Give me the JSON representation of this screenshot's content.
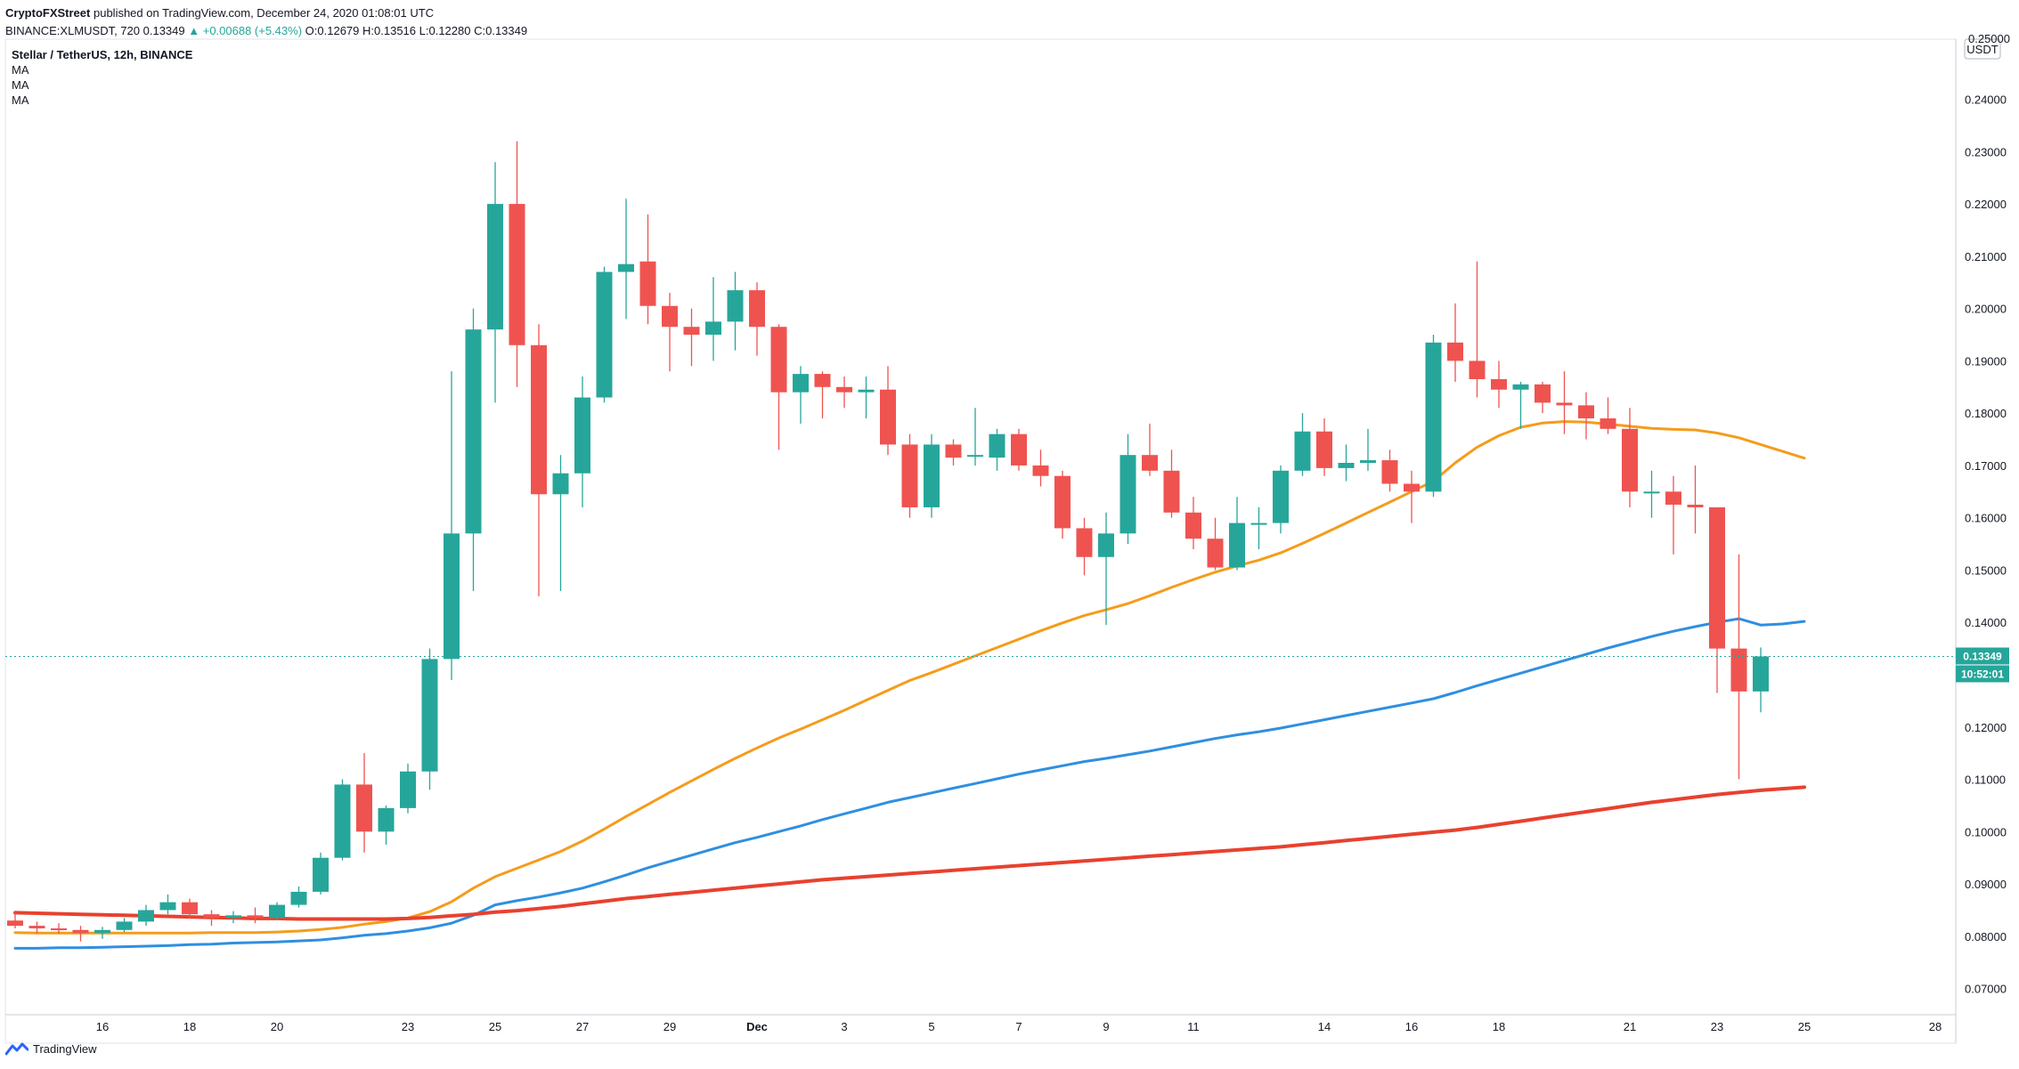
{
  "header": {
    "publisher": "CryptoFXStreet",
    "published_text": "published on TradingView.com, December 24, 2020 01:08:01 UTC",
    "symbol_line": "BINANCE:XLMUSDT, 720",
    "last": "0.13349",
    "change": "▲ +0.00688 (+5.43%)",
    "open": "O:0.12679",
    "high": "H:0.13516",
    "low": "L:0.12280",
    "close": "C:0.13349"
  },
  "legend": {
    "title": "Stellar / TetherUS, 12h, BINANCE",
    "ma_labels": [
      "MA",
      "MA",
      "MA"
    ]
  },
  "price_axis": {
    "currency": "USDT",
    "top_label": "0.25000",
    "ticks": [
      "0.24000",
      "0.23000",
      "0.22000",
      "0.21000",
      "0.20000",
      "0.19000",
      "0.18000",
      "0.17000",
      "0.16000",
      "0.15000",
      "0.14000",
      "0.13000",
      "0.12000",
      "0.11000",
      "0.10000",
      "0.09000",
      "0.08000",
      "0.07000"
    ],
    "last_price_tag": "0.13349",
    "countdown_tag": "10:52:01"
  },
  "time_axis": {
    "labels": [
      "16",
      "18",
      "20",
      "23",
      "25",
      "27",
      "29",
      "Dec",
      "3",
      "5",
      "7",
      "9",
      "11",
      "14",
      "16",
      "18",
      "21",
      "23",
      "25",
      "28"
    ]
  },
  "branding": {
    "label": "TradingView"
  },
  "colors": {
    "up": "#26a69a",
    "down": "#ef5350",
    "ma_short": "#f59c1b",
    "ma_mid": "#2f8fe0",
    "ma_long": "#e8412f",
    "last_line": "#26a69a"
  },
  "chart_data": {
    "type": "candlestick",
    "symbol": "XLMUSDT",
    "interval": "12h",
    "exchange": "BINANCE",
    "ylim": [
      0.065,
      0.2515
    ],
    "ohlc": [
      {
        "x": "Nov 14 00:00",
        "o": 0.083,
        "h": 0.0845,
        "l": 0.0815,
        "c": 0.082
      },
      {
        "x": "Nov 14 12:00",
        "o": 0.082,
        "h": 0.0828,
        "l": 0.0805,
        "c": 0.0815
      },
      {
        "x": "Nov 15 00:00",
        "o": 0.0815,
        "h": 0.0825,
        "l": 0.0805,
        "c": 0.0812
      },
      {
        "x": "Nov 15 12:00",
        "o": 0.0812,
        "h": 0.082,
        "l": 0.079,
        "c": 0.0806
      },
      {
        "x": "Nov 16 00:00",
        "o": 0.0806,
        "h": 0.0818,
        "l": 0.0795,
        "c": 0.0812
      },
      {
        "x": "Nov 16 12:00",
        "o": 0.0812,
        "h": 0.0835,
        "l": 0.0808,
        "c": 0.0828
      },
      {
        "x": "Nov 17 00:00",
        "o": 0.0828,
        "h": 0.086,
        "l": 0.082,
        "c": 0.085
      },
      {
        "x": "Nov 17 12:00",
        "o": 0.085,
        "h": 0.088,
        "l": 0.0842,
        "c": 0.0865
      },
      {
        "x": "Nov 18 00:00",
        "o": 0.0865,
        "h": 0.0872,
        "l": 0.0835,
        "c": 0.0842
      },
      {
        "x": "Nov 18 12:00",
        "o": 0.0842,
        "h": 0.085,
        "l": 0.082,
        "c": 0.0835
      },
      {
        "x": "Nov 19 00:00",
        "o": 0.0835,
        "h": 0.0848,
        "l": 0.0825,
        "c": 0.084
      },
      {
        "x": "Nov 19 12:00",
        "o": 0.084,
        "h": 0.0855,
        "l": 0.0825,
        "c": 0.0835
      },
      {
        "x": "Nov 20 00:00",
        "o": 0.0835,
        "h": 0.0865,
        "l": 0.0832,
        "c": 0.086
      },
      {
        "x": "Nov 20 12:00",
        "o": 0.086,
        "h": 0.0895,
        "l": 0.0855,
        "c": 0.0885
      },
      {
        "x": "Nov 21 00:00",
        "o": 0.0885,
        "h": 0.096,
        "l": 0.088,
        "c": 0.095
      },
      {
        "x": "Nov 21 12:00",
        "o": 0.095,
        "h": 0.11,
        "l": 0.0945,
        "c": 0.109
      },
      {
        "x": "Nov 22 00:00",
        "o": 0.109,
        "h": 0.115,
        "l": 0.096,
        "c": 0.1
      },
      {
        "x": "Nov 22 12:00",
        "o": 0.1,
        "h": 0.105,
        "l": 0.0975,
        "c": 0.1045
      },
      {
        "x": "Nov 23 00:00",
        "o": 0.1045,
        "h": 0.113,
        "l": 0.1035,
        "c": 0.1115
      },
      {
        "x": "Nov 23 12:00",
        "o": 0.1115,
        "h": 0.135,
        "l": 0.108,
        "c": 0.133
      },
      {
        "x": "Nov 24 00:00",
        "o": 0.133,
        "h": 0.188,
        "l": 0.129,
        "c": 0.157
      },
      {
        "x": "Nov 24 12:00",
        "o": 0.157,
        "h": 0.2,
        "l": 0.146,
        "c": 0.196
      },
      {
        "x": "Nov 25 00:00",
        "o": 0.196,
        "h": 0.228,
        "l": 0.182,
        "c": 0.22
      },
      {
        "x": "Nov 25 12:00",
        "o": 0.22,
        "h": 0.232,
        "l": 0.185,
        "c": 0.193
      },
      {
        "x": "Nov 26 00:00",
        "o": 0.193,
        "h": 0.197,
        "l": 0.145,
        "c": 0.1645
      },
      {
        "x": "Nov 26 12:00",
        "o": 0.1645,
        "h": 0.172,
        "l": 0.146,
        "c": 0.1685
      },
      {
        "x": "Nov 27 00:00",
        "o": 0.1685,
        "h": 0.187,
        "l": 0.162,
        "c": 0.183
      },
      {
        "x": "Nov 27 12:00",
        "o": 0.183,
        "h": 0.208,
        "l": 0.182,
        "c": 0.207
      },
      {
        "x": "Nov 28 00:00",
        "o": 0.207,
        "h": 0.221,
        "l": 0.198,
        "c": 0.2085
      },
      {
        "x": "Nov 28 12:00",
        "o": 0.209,
        "h": 0.218,
        "l": 0.197,
        "c": 0.2005
      },
      {
        "x": "Nov 29 00:00",
        "o": 0.2005,
        "h": 0.203,
        "l": 0.188,
        "c": 0.1965
      },
      {
        "x": "Nov 29 12:00",
        "o": 0.1965,
        "h": 0.2,
        "l": 0.189,
        "c": 0.195
      },
      {
        "x": "Nov 30 00:00",
        "o": 0.195,
        "h": 0.206,
        "l": 0.19,
        "c": 0.1975
      },
      {
        "x": "Nov 30 12:00",
        "o": 0.1975,
        "h": 0.207,
        "l": 0.192,
        "c": 0.2035
      },
      {
        "x": "Dec 1 00:00",
        "o": 0.2035,
        "h": 0.205,
        "l": 0.191,
        "c": 0.1965
      },
      {
        "x": "Dec 1 12:00",
        "o": 0.1965,
        "h": 0.197,
        "l": 0.173,
        "c": 0.184
      },
      {
        "x": "Dec 2 00:00",
        "o": 0.184,
        "h": 0.189,
        "l": 0.178,
        "c": 0.1875
      },
      {
        "x": "Dec 2 12:00",
        "o": 0.1875,
        "h": 0.188,
        "l": 0.179,
        "c": 0.185
      },
      {
        "x": "Dec 3 00:00",
        "o": 0.185,
        "h": 0.187,
        "l": 0.181,
        "c": 0.184
      },
      {
        "x": "Dec 3 12:00",
        "o": 0.184,
        "h": 0.187,
        "l": 0.179,
        "c": 0.1845
      },
      {
        "x": "Dec 4 00:00",
        "o": 0.1845,
        "h": 0.189,
        "l": 0.172,
        "c": 0.174
      },
      {
        "x": "Dec 4 12:00",
        "o": 0.174,
        "h": 0.176,
        "l": 0.16,
        "c": 0.162
      },
      {
        "x": "Dec 5 00:00",
        "o": 0.162,
        "h": 0.176,
        "l": 0.16,
        "c": 0.174
      },
      {
        "x": "Dec 5 12:00",
        "o": 0.174,
        "h": 0.175,
        "l": 0.17,
        "c": 0.1715
      },
      {
        "x": "Dec 6 00:00",
        "o": 0.172,
        "h": 0.181,
        "l": 0.17,
        "c": 0.172
      },
      {
        "x": "Dec 6 12:00",
        "o": 0.1715,
        "h": 0.177,
        "l": 0.169,
        "c": 0.176
      },
      {
        "x": "Dec 7 00:00",
        "o": 0.176,
        "h": 0.177,
        "l": 0.169,
        "c": 0.17
      },
      {
        "x": "Dec 7 12:00",
        "o": 0.17,
        "h": 0.173,
        "l": 0.166,
        "c": 0.168
      },
      {
        "x": "Dec 8 00:00",
        "o": 0.168,
        "h": 0.169,
        "l": 0.156,
        "c": 0.158
      },
      {
        "x": "Dec 8 12:00",
        "o": 0.158,
        "h": 0.16,
        "l": 0.149,
        "c": 0.1525
      },
      {
        "x": "Dec 9 00:00",
        "o": 0.1525,
        "h": 0.161,
        "l": 0.1395,
        "c": 0.157
      },
      {
        "x": "Dec 9 12:00",
        "o": 0.157,
        "h": 0.176,
        "l": 0.155,
        "c": 0.172
      },
      {
        "x": "Dec 10 00:00",
        "o": 0.172,
        "h": 0.178,
        "l": 0.168,
        "c": 0.169
      },
      {
        "x": "Dec 10 12:00",
        "o": 0.169,
        "h": 0.173,
        "l": 0.16,
        "c": 0.161
      },
      {
        "x": "Dec 11 00:00",
        "o": 0.161,
        "h": 0.164,
        "l": 0.154,
        "c": 0.156
      },
      {
        "x": "Dec 11 12:00",
        "o": 0.156,
        "h": 0.16,
        "l": 0.15,
        "c": 0.1505
      },
      {
        "x": "Dec 12 00:00",
        "o": 0.1505,
        "h": 0.164,
        "l": 0.15,
        "c": 0.159
      },
      {
        "x": "Dec 12 12:00",
        "o": 0.159,
        "h": 0.162,
        "l": 0.154,
        "c": 0.159
      },
      {
        "x": "Dec 13 00:00",
        "o": 0.159,
        "h": 0.17,
        "l": 0.157,
        "c": 0.169
      },
      {
        "x": "Dec 13 12:00",
        "o": 0.169,
        "h": 0.18,
        "l": 0.168,
        "c": 0.1765
      },
      {
        "x": "Dec 14 00:00",
        "o": 0.1765,
        "h": 0.179,
        "l": 0.168,
        "c": 0.1695
      },
      {
        "x": "Dec 14 12:00",
        "o": 0.1695,
        "h": 0.174,
        "l": 0.167,
        "c": 0.1705
      },
      {
        "x": "Dec 15 00:00",
        "o": 0.1705,
        "h": 0.177,
        "l": 0.169,
        "c": 0.171
      },
      {
        "x": "Dec 15 12:00",
        "o": 0.171,
        "h": 0.173,
        "l": 0.165,
        "c": 0.1665
      },
      {
        "x": "Dec 16 00:00",
        "o": 0.1665,
        "h": 0.169,
        "l": 0.159,
        "c": 0.165
      },
      {
        "x": "Dec 16 12:00",
        "o": 0.165,
        "h": 0.195,
        "l": 0.164,
        "c": 0.1935
      },
      {
        "x": "Dec 17 00:00",
        "o": 0.1935,
        "h": 0.201,
        "l": 0.186,
        "c": 0.19
      },
      {
        "x": "Dec 17 12:00",
        "o": 0.19,
        "h": 0.209,
        "l": 0.183,
        "c": 0.1865
      },
      {
        "x": "Dec 18 00:00",
        "o": 0.1865,
        "h": 0.19,
        "l": 0.181,
        "c": 0.1845
      },
      {
        "x": "Dec 18 12:00",
        "o": 0.1845,
        "h": 0.186,
        "l": 0.177,
        "c": 0.1855
      },
      {
        "x": "Dec 19 00:00",
        "o": 0.1855,
        "h": 0.186,
        "l": 0.18,
        "c": 0.182
      },
      {
        "x": "Dec 19 12:00",
        "o": 0.182,
        "h": 0.188,
        "l": 0.176,
        "c": 0.1815
      },
      {
        "x": "Dec 20 00:00",
        "o": 0.1815,
        "h": 0.184,
        "l": 0.175,
        "c": 0.179
      },
      {
        "x": "Dec 20 12:00",
        "o": 0.179,
        "h": 0.183,
        "l": 0.176,
        "c": 0.177
      },
      {
        "x": "Dec 21 00:00",
        "o": 0.177,
        "h": 0.181,
        "l": 0.162,
        "c": 0.165
      },
      {
        "x": "Dec 21 12:00",
        "o": 0.165,
        "h": 0.169,
        "l": 0.16,
        "c": 0.165
      },
      {
        "x": "Dec 22 00:00",
        "o": 0.165,
        "h": 0.168,
        "l": 0.153,
        "c": 0.1625
      },
      {
        "x": "Dec 22 12:00",
        "o": 0.1625,
        "h": 0.17,
        "l": 0.157,
        "c": 0.162
      },
      {
        "x": "Dec 23 00:00",
        "o": 0.162,
        "h": 0.162,
        "l": 0.1265,
        "c": 0.135
      },
      {
        "x": "Dec 23 12:00",
        "o": 0.135,
        "h": 0.153,
        "l": 0.11,
        "c": 0.1268
      },
      {
        "x": "Dec 24 00:00",
        "o": 0.1268,
        "h": 0.1352,
        "l": 0.1228,
        "c": 0.1335
      }
    ],
    "moving_averages": [
      {
        "name": "MA",
        "color": "#f59c1b",
        "values": [
          0.0807,
          0.0806,
          0.0806,
          0.0806,
          0.0806,
          0.0806,
          0.0806,
          0.0806,
          0.0806,
          0.0807,
          0.0807,
          0.0807,
          0.0808,
          0.081,
          0.0813,
          0.0817,
          0.0823,
          0.0828,
          0.0835,
          0.0847,
          0.0866,
          0.0892,
          0.0914,
          0.093,
          0.0946,
          0.0962,
          0.0982,
          0.1005,
          0.1029,
          0.1052,
          0.1075,
          0.1097,
          0.1119,
          0.114,
          0.116,
          0.1179,
          0.1196,
          0.1214,
          0.1232,
          0.1251,
          0.127,
          0.1289,
          0.1304,
          0.132,
          0.1336,
          0.1352,
          0.1368,
          0.1384,
          0.1399,
          0.1413,
          0.1424,
          0.1436,
          0.1451,
          0.1467,
          0.1482,
          0.1496,
          0.1508,
          0.1519,
          0.1533,
          0.1551,
          0.157,
          0.159,
          0.161,
          0.163,
          0.165,
          0.167,
          0.1705,
          0.1735,
          0.1757,
          0.1773,
          0.1781,
          0.1784,
          0.1783,
          0.1779,
          0.1775,
          0.1771,
          0.1769,
          0.1768,
          0.1762,
          0.1753,
          0.174,
          0.1727,
          0.1714
        ]
      },
      {
        "name": "MA",
        "color": "#2f8fe0",
        "values": [
          0.0777,
          0.0777,
          0.0778,
          0.0778,
          0.0779,
          0.078,
          0.0781,
          0.0782,
          0.0784,
          0.0785,
          0.0787,
          0.0788,
          0.0789,
          0.0791,
          0.0793,
          0.0797,
          0.0802,
          0.0805,
          0.081,
          0.0816,
          0.0825,
          0.084,
          0.086,
          0.0868,
          0.0875,
          0.0883,
          0.0892,
          0.0904,
          0.0917,
          0.0931,
          0.0943,
          0.0955,
          0.0967,
          0.0979,
          0.0989,
          0.1,
          0.1011,
          0.1023,
          0.1034,
          0.1045,
          0.1056,
          0.1065,
          0.1074,
          0.1083,
          0.1092,
          0.1101,
          0.111,
          0.1118,
          0.1126,
          0.1134,
          0.114,
          0.1147,
          0.1154,
          0.1162,
          0.117,
          0.1178,
          0.1185,
          0.1191,
          0.1198,
          0.1206,
          0.1214,
          0.1222,
          0.123,
          0.1238,
          0.1246,
          0.1254,
          0.1266,
          0.1279,
          0.1291,
          0.1303,
          0.1315,
          0.1327,
          0.1339,
          0.1351,
          0.1362,
          0.1373,
          0.1383,
          0.1392,
          0.14,
          0.1407,
          0.1395,
          0.1397,
          0.1402
        ]
      },
      {
        "name": "MA",
        "color": "#e8412f",
        "values": [
          0.0845,
          0.0844,
          0.0843,
          0.0842,
          0.0841,
          0.084,
          0.0839,
          0.0838,
          0.0837,
          0.0836,
          0.0835,
          0.0834,
          0.0834,
          0.0833,
          0.0833,
          0.0833,
          0.0833,
          0.0833,
          0.0834,
          0.0836,
          0.0839,
          0.0842,
          0.0846,
          0.0849,
          0.0853,
          0.0857,
          0.0862,
          0.0867,
          0.0872,
          0.0876,
          0.088,
          0.0884,
          0.0888,
          0.0892,
          0.0896,
          0.09,
          0.0904,
          0.0908,
          0.0911,
          0.0914,
          0.0917,
          0.092,
          0.0923,
          0.0926,
          0.0929,
          0.0932,
          0.0935,
          0.0938,
          0.0941,
          0.0944,
          0.0947,
          0.095,
          0.0953,
          0.0956,
          0.0959,
          0.0962,
          0.0965,
          0.0968,
          0.0971,
          0.0975,
          0.0979,
          0.0983,
          0.0987,
          0.0991,
          0.0995,
          0.0999,
          0.1003,
          0.1008,
          0.1014,
          0.102,
          0.1026,
          0.1032,
          0.1038,
          0.1044,
          0.105,
          0.1056,
          0.1061,
          0.1066,
          0.1071,
          0.1075,
          0.1079,
          0.1082,
          0.1085
        ]
      }
    ]
  }
}
